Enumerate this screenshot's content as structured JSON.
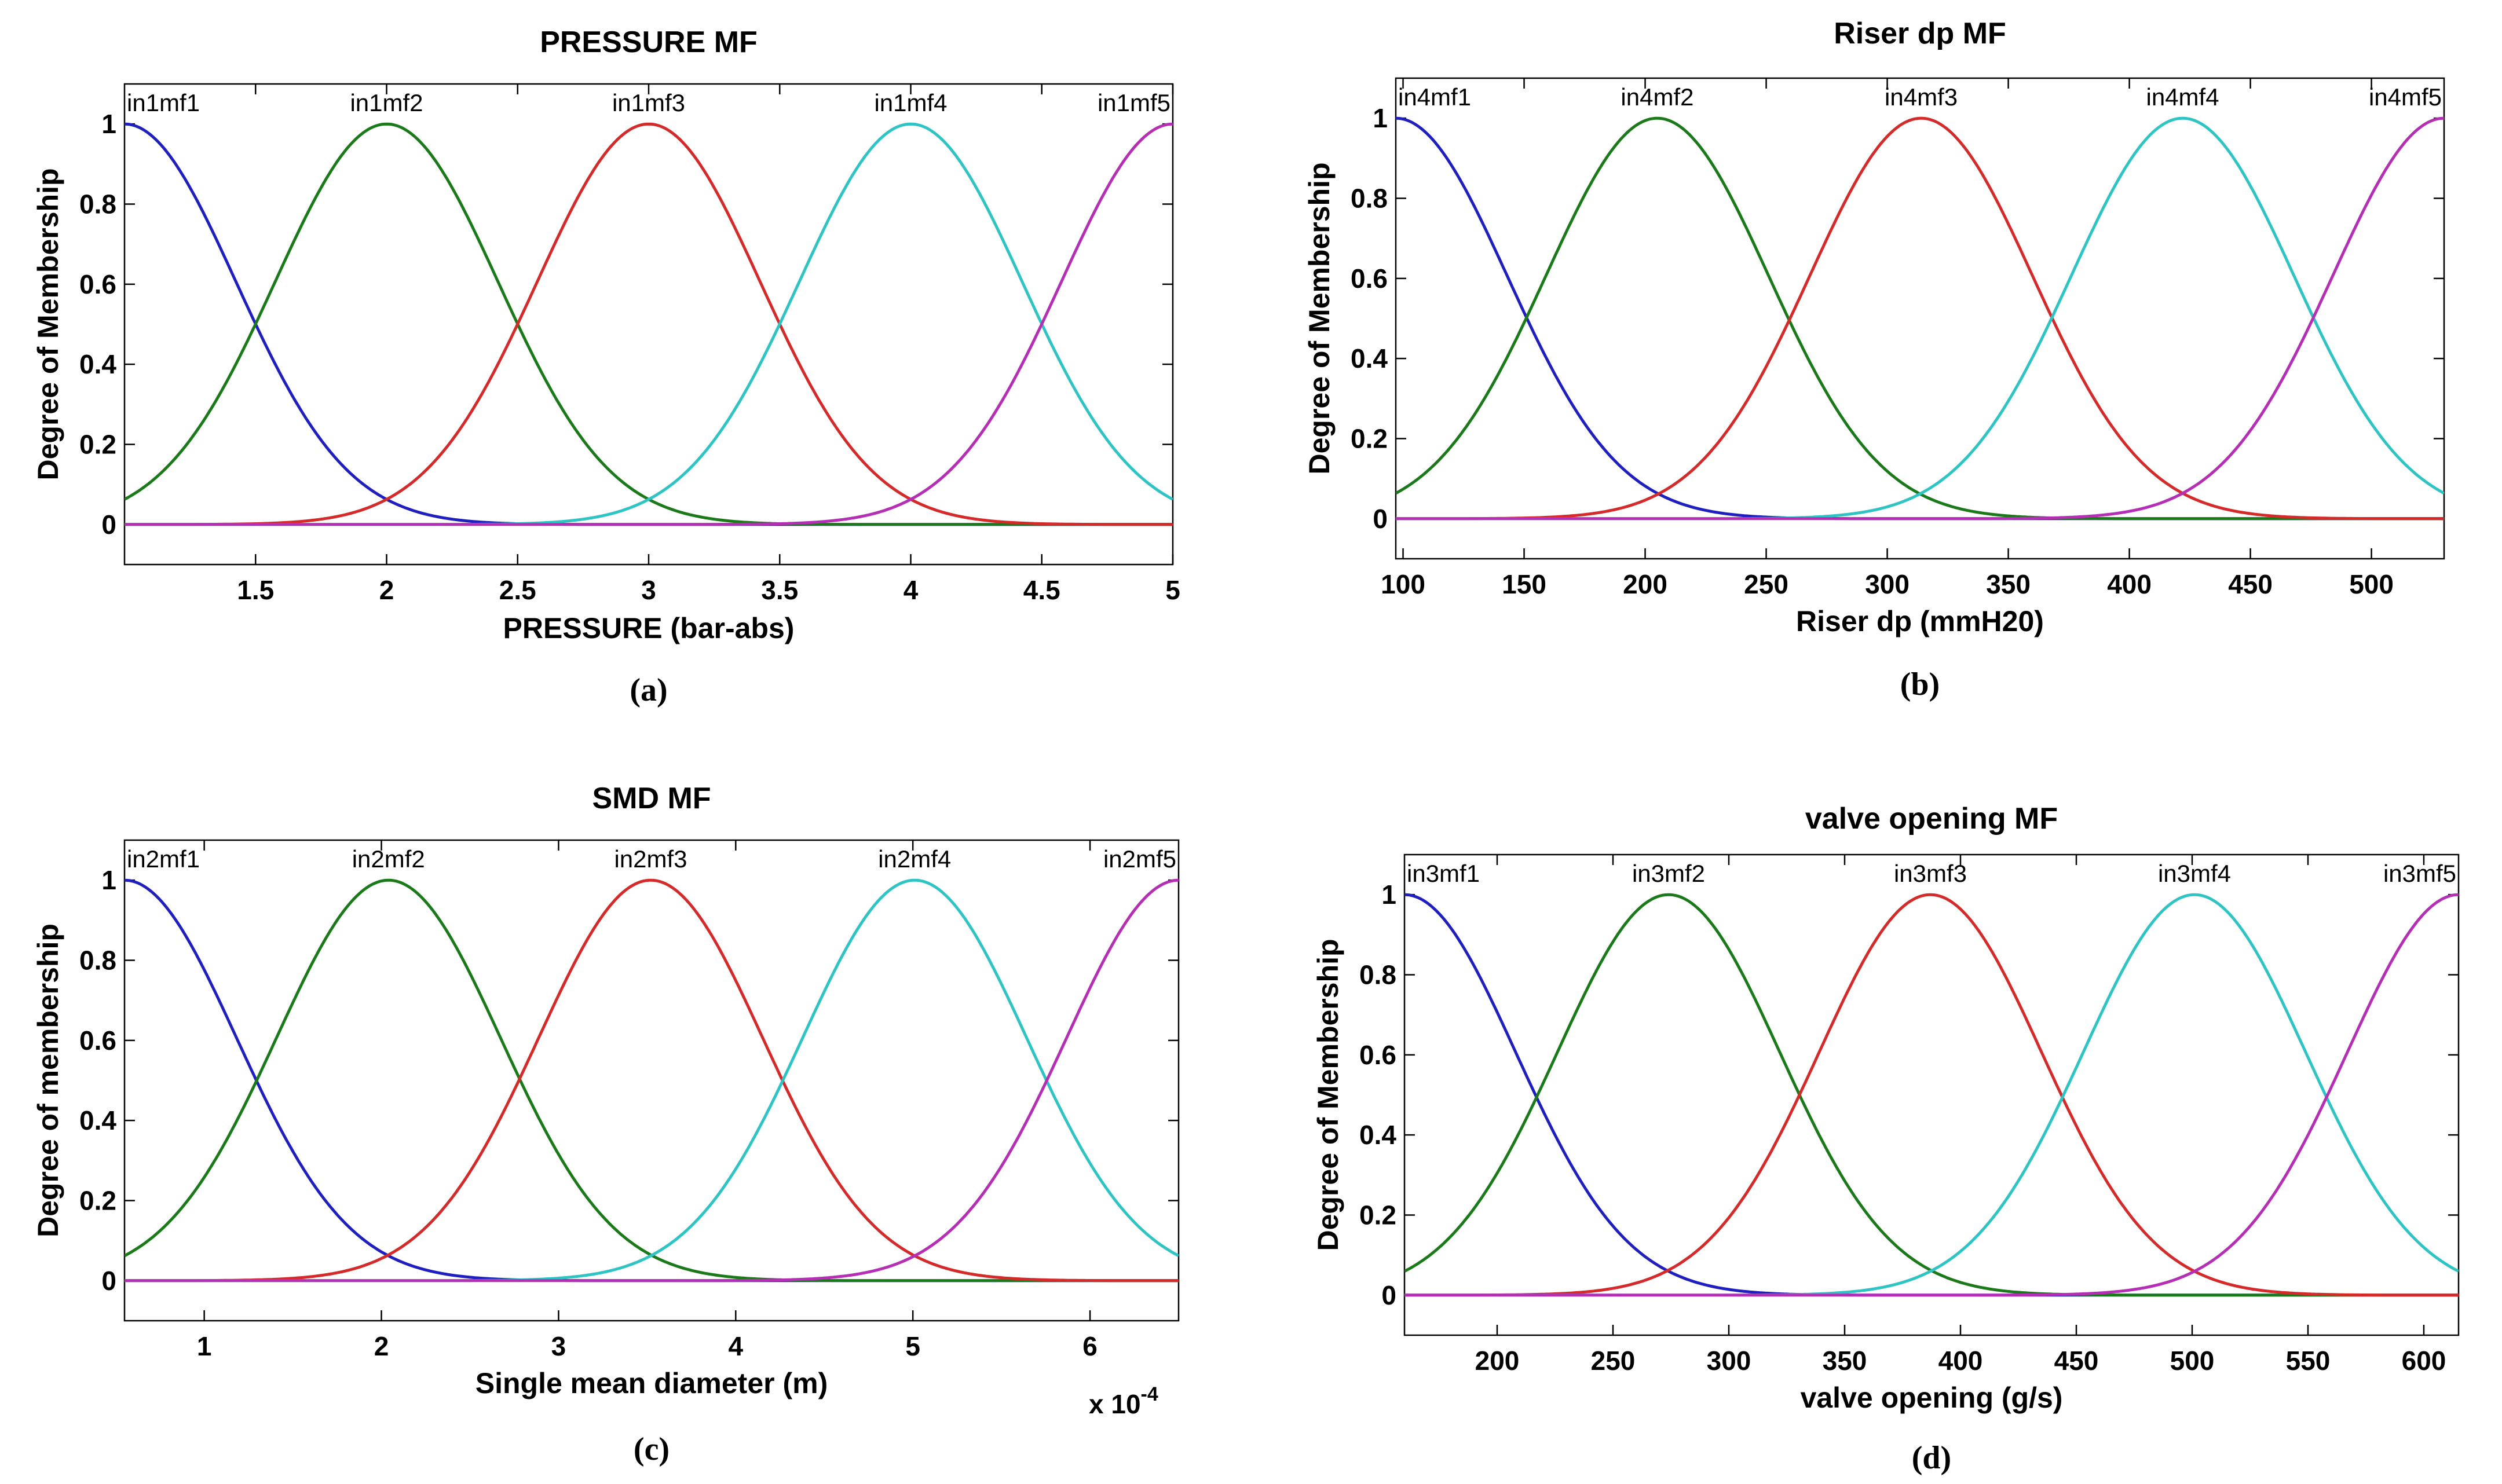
{
  "colors": {
    "mf1": "#1f1fbf",
    "mf2": "#1a7a1a",
    "mf3": "#d42a2a",
    "mf4": "#2fc4c4",
    "mf5": "#b52fb5",
    "axis": "#000000",
    "background": "#ffffff"
  },
  "chart_data": [
    {
      "type": "line",
      "caption": "(a)",
      "title": "PRESSURE MF",
      "xlabel": "PRESSURE (bar-abs)",
      "ylabel": "Degree of Membership",
      "xlim": [
        1,
        5
      ],
      "ylim": [
        -0.1,
        1.1
      ],
      "xticks": [
        1.5,
        2,
        2.5,
        3,
        3.5,
        4,
        4.5,
        5
      ],
      "xtick_labels": [
        "1.5",
        "2",
        "2.5",
        "3",
        "3.5",
        "4",
        "4.5",
        "5"
      ],
      "yticks": [
        0,
        0.2,
        0.4,
        0.6,
        0.8,
        1
      ],
      "ytick_labels": [
        "0",
        "0.2",
        "0.4",
        "0.6",
        "0.8",
        "1"
      ],
      "x_exponent_label": "",
      "series": [
        {
          "name": "in1mf1",
          "function": "gaussian",
          "center": 1.0,
          "sigma": 0.425
        },
        {
          "name": "in1mf2",
          "function": "gaussian",
          "center": 2.0,
          "sigma": 0.425
        },
        {
          "name": "in1mf3",
          "function": "gaussian",
          "center": 3.0,
          "sigma": 0.425
        },
        {
          "name": "in1mf4",
          "function": "gaussian",
          "center": 4.0,
          "sigma": 0.425
        },
        {
          "name": "in1mf5",
          "function": "gaussian",
          "center": 5.0,
          "sigma": 0.425
        }
      ]
    },
    {
      "type": "line",
      "caption": "(b)",
      "title": "Riser dp MF",
      "xlabel": "Riser dp (mmH20)",
      "ylabel": "Degree of Membership",
      "xlim": [
        97,
        530
      ],
      "ylim": [
        -0.1,
        1.1
      ],
      "xticks": [
        100,
        150,
        200,
        250,
        300,
        350,
        400,
        450,
        500
      ],
      "xtick_labels": [
        "100",
        "150",
        "200",
        "250",
        "300",
        "350",
        "400",
        "450",
        "500"
      ],
      "yticks": [
        0,
        0.2,
        0.4,
        0.6,
        0.8,
        1
      ],
      "ytick_labels": [
        "0",
        "0.2",
        "0.4",
        "0.6",
        "0.8",
        "1"
      ],
      "x_exponent_label": "",
      "series": [
        {
          "name": "in4mf1",
          "function": "gaussian",
          "center": 97,
          "sigma": 46
        },
        {
          "name": "in4mf2",
          "function": "gaussian",
          "center": 205,
          "sigma": 46
        },
        {
          "name": "in4mf3",
          "function": "gaussian",
          "center": 314,
          "sigma": 46
        },
        {
          "name": "in4mf4",
          "function": "gaussian",
          "center": 422,
          "sigma": 46
        },
        {
          "name": "in4mf5",
          "function": "gaussian",
          "center": 530,
          "sigma": 46
        }
      ]
    },
    {
      "type": "line",
      "caption": "(c)",
      "title": "SMD MF",
      "xlabel": "Single mean diameter (m)",
      "ylabel": "Degree of membership",
      "xlim": [
        0.55,
        6.5
      ],
      "ylim": [
        -0.1,
        1.1
      ],
      "xticks": [
        1,
        2,
        3,
        4,
        5,
        6
      ],
      "xtick_labels": [
        "1",
        "2",
        "3",
        "4",
        "5",
        "6"
      ],
      "yticks": [
        0,
        0.2,
        0.4,
        0.6,
        0.8,
        1
      ],
      "ytick_labels": [
        "0",
        "0.2",
        "0.4",
        "0.6",
        "0.8",
        "1"
      ],
      "x_exponent_label": "x 10",
      "x_exponent_power": "-4",
      "series": [
        {
          "name": "in2mf1",
          "function": "gaussian",
          "center": 0.55,
          "sigma": 0.632
        },
        {
          "name": "in2mf2",
          "function": "gaussian",
          "center": 2.04,
          "sigma": 0.632
        },
        {
          "name": "in2mf3",
          "function": "gaussian",
          "center": 3.52,
          "sigma": 0.632
        },
        {
          "name": "in2mf4",
          "function": "gaussian",
          "center": 5.01,
          "sigma": 0.632
        },
        {
          "name": "in2mf5",
          "function": "gaussian",
          "center": 6.5,
          "sigma": 0.632
        }
      ]
    },
    {
      "type": "line",
      "caption": "(d)",
      "title": "valve opening MF",
      "xlabel": "valve opening (g/s)",
      "ylabel": "Degree of Membership",
      "xlim": [
        160,
        615
      ],
      "ylim": [
        -0.1,
        1.1
      ],
      "xticks": [
        200,
        250,
        300,
        350,
        400,
        450,
        500,
        550,
        600
      ],
      "xtick_labels": [
        "200",
        "250",
        "300",
        "350",
        "400",
        "450",
        "500",
        "550",
        "600"
      ],
      "yticks": [
        0,
        0.2,
        0.4,
        0.6,
        0.8,
        1
      ],
      "ytick_labels": [
        "0",
        "0.2",
        "0.4",
        "0.6",
        "0.8",
        "1"
      ],
      "x_exponent_label": "",
      "series": [
        {
          "name": "in3mf1",
          "function": "gaussian",
          "center": 160,
          "sigma": 48
        },
        {
          "name": "in3mf2",
          "function": "gaussian",
          "center": 274,
          "sigma": 48
        },
        {
          "name": "in3mf3",
          "function": "gaussian",
          "center": 387,
          "sigma": 48
        },
        {
          "name": "in3mf4",
          "function": "gaussian",
          "center": 501,
          "sigma": 48
        },
        {
          "name": "in3mf5",
          "function": "gaussian",
          "center": 615,
          "sigma": 48
        }
      ]
    }
  ]
}
